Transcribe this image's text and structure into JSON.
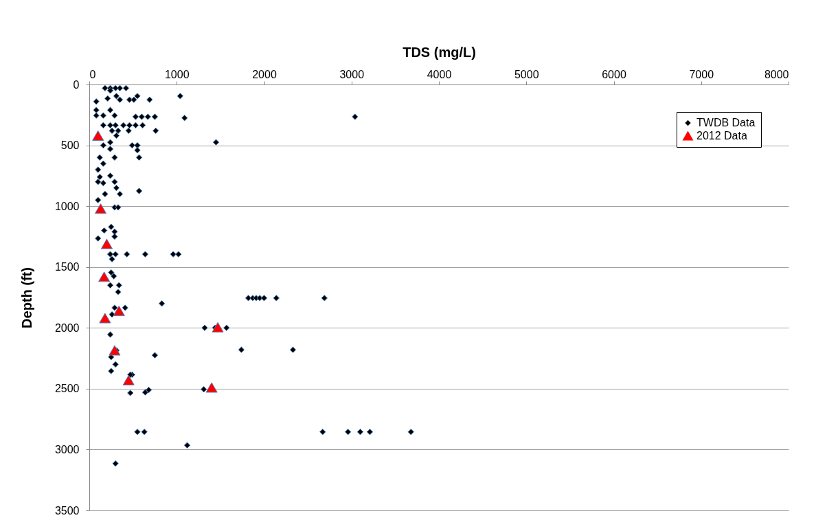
{
  "chart_data": {
    "type": "scatter",
    "xlabel": "TDS (mg/L)",
    "ylabel": "Depth (ft)",
    "xlim": [
      0,
      8000
    ],
    "xticks": [
      0,
      1000,
      2000,
      3000,
      4000,
      5000,
      6000,
      7000,
      8000
    ],
    "ylim": [
      3500,
      0
    ],
    "yticks": [
      0,
      500,
      1000,
      1500,
      2000,
      2500,
      3000,
      3500
    ],
    "grid": "y",
    "legend": "top right",
    "series": [
      {
        "name": "TWDB Data",
        "color": "#000000",
        "marker": "diamond",
        "x": [
          180,
          240,
          350,
          420,
          300,
          240,
          1040,
          80,
          210,
          310,
          350,
          460,
          510,
          550,
          690,
          80,
          240,
          80,
          160,
          290,
          530,
          600,
          670,
          750,
          1090,
          3040,
          160,
          240,
          300,
          390,
          460,
          530,
          610,
          260,
          330,
          450,
          760,
          310,
          240,
          160,
          240,
          490,
          550,
          550,
          570,
          290,
          1450,
          120,
          160,
          100,
          120,
          240,
          100,
          160,
          290,
          310,
          350,
          570,
          180,
          100,
          290,
          330,
          170,
          250,
          290,
          100,
          290,
          240,
          300,
          430,
          640,
          960,
          1020,
          260,
          250,
          280,
          240,
          340,
          330,
          830,
          1820,
          1870,
          1910,
          1950,
          2000,
          2140,
          2690,
          290,
          410,
          260,
          240,
          1320,
          1440,
          1570,
          1740,
          2330,
          310,
          250,
          750,
          300,
          250,
          490,
          470,
          450,
          470,
          640,
          680,
          1310,
          550,
          630,
          2670,
          2960,
          3100,
          3210,
          3680,
          1120,
          300
        ],
        "values": [
          30,
          30,
          30,
          30,
          30,
          50,
          95,
          140,
          115,
          95,
          125,
          125,
          125,
          95,
          125,
          210,
          210,
          255,
          255,
          255,
          265,
          265,
          265,
          265,
          275,
          265,
          335,
          335,
          335,
          335,
          335,
          335,
          335,
          380,
          380,
          380,
          380,
          420,
          475,
          500,
          530,
          500,
          500,
          540,
          600,
          600,
          475,
          600,
          650,
          700,
          760,
          750,
          800,
          810,
          800,
          850,
          900,
          875,
          900,
          950,
          1010,
          1010,
          1200,
          1170,
          1210,
          1265,
          1250,
          1395,
          1395,
          1395,
          1395,
          1395,
          1395,
          1435,
          1545,
          1575,
          1650,
          1650,
          1705,
          1800,
          1755,
          1755,
          1755,
          1755,
          1755,
          1755,
          1755,
          1835,
          1835,
          1890,
          2055,
          2000,
          2000,
          2000,
          2180,
          2180,
          2185,
          2240,
          2225,
          2300,
          2355,
          2385,
          2385,
          2430,
          2535,
          2530,
          2510,
          2505,
          2855,
          2855,
          2855,
          2855,
          2855,
          2855,
          2855,
          2965,
          3115
        ]
      },
      {
        "name": "2012 Data",
        "color": "#ff0000",
        "marker": "triangle",
        "x": [
          100,
          130,
          200,
          170,
          340,
          180,
          1470,
          290,
          450,
          1400
        ],
        "values": [
          420,
          1020,
          1310,
          1580,
          1860,
          1920,
          1995,
          2185,
          2430,
          2490
        ]
      }
    ]
  }
}
